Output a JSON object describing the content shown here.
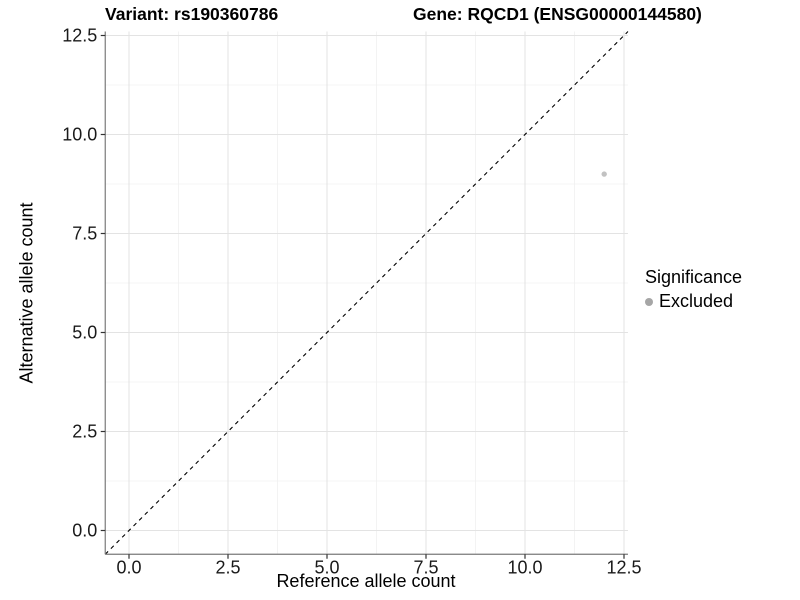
{
  "chart_data": {
    "type": "scatter",
    "title_left": "Variant: rs190360786",
    "title_right": "Gene: RQCD1 (ENSG00000144580)",
    "xlabel": "Reference allele count",
    "ylabel": "Alternative allele count",
    "xlim": [
      -0.6,
      12.6
    ],
    "ylim": [
      -0.6,
      12.6
    ],
    "x_ticks": [
      0,
      2.5,
      5,
      7.5,
      10,
      12.5
    ],
    "y_ticks": [
      0,
      2.5,
      5,
      7.5,
      10,
      12.5
    ],
    "x_tick_labels": [
      "0.0",
      "2.5",
      "5.0",
      "7.5",
      "10.0",
      "12.5"
    ],
    "y_tick_labels": [
      "0.0",
      "2.5",
      "5.0",
      "7.5",
      "10.0",
      "12.5"
    ],
    "grid": true,
    "minor_grid": true,
    "reference_line": {
      "type": "identity",
      "style": "dashed",
      "color": "#000000"
    },
    "series": [
      {
        "name": "Excluded",
        "color": "#c2c2c2",
        "points": [
          {
            "x": 12,
            "y": 9
          }
        ]
      }
    ],
    "legend": {
      "title": "Significance",
      "position": "right",
      "items": [
        {
          "label": "Excluded",
          "color": "#a6a6a6"
        }
      ]
    },
    "style": {
      "background": "#ffffff",
      "grid_major": "#e3e3e3",
      "grid_minor": "#f0f0f0",
      "axis_line": "#7a7a7a",
      "tick_mark": "#333333",
      "tick_label_color": "#1a1a1a",
      "point_color": "#c2c2c2",
      "dashed_line_color": "#000000"
    }
  }
}
